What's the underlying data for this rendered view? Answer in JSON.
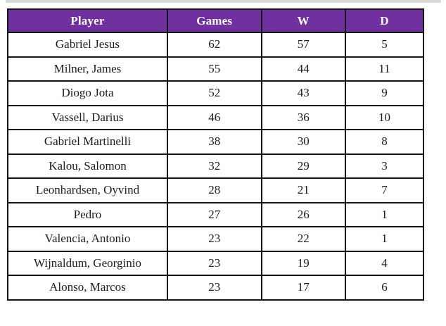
{
  "colors": {
    "header_background": "#7030A0",
    "header_text": "#FFFFFF",
    "border": "#141414",
    "body_text": "#1C1C1C",
    "top_strip": "#D9D9D9"
  },
  "table": {
    "columns": [
      "Player",
      "Games",
      "W",
      "D"
    ],
    "column_cell_names": [
      "player-cell",
      "games-cell",
      "wins-cell",
      "draws-cell"
    ],
    "rows": [
      [
        "Gabriel Jesus",
        "62",
        "57",
        "5"
      ],
      [
        "Milner, James",
        "55",
        "44",
        "11"
      ],
      [
        "Diogo Jota",
        "52",
        "43",
        "9"
      ],
      [
        "Vassell, Darius",
        "46",
        "36",
        "10"
      ],
      [
        "Gabriel Martinelli",
        "38",
        "30",
        "8"
      ],
      [
        "Kalou, Salomon",
        "32",
        "29",
        "3"
      ],
      [
        "Leonhardsen, Oyvind",
        "28",
        "21",
        "7"
      ],
      [
        "Pedro",
        "27",
        "26",
        "1"
      ],
      [
        "Valencia, Antonio",
        "23",
        "22",
        "1"
      ],
      [
        "Wijnaldum, Georginio",
        "23",
        "19",
        "4"
      ],
      [
        "Alonso, Marcos",
        "23",
        "17",
        "6"
      ]
    ]
  }
}
